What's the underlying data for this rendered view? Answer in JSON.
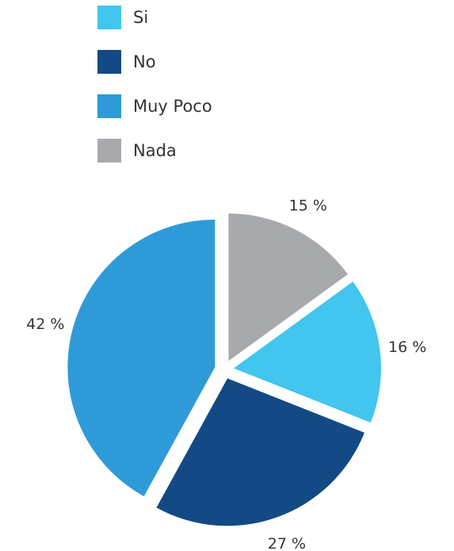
{
  "chart_data": {
    "type": "pie",
    "legend_position": "top",
    "slices": [
      {
        "label": "Nada",
        "value": 15,
        "value_label": "15 %",
        "color": "#a7a9ac"
      },
      {
        "label": "Si",
        "value": 16,
        "value_label": "16 %",
        "color": "#42c5ee"
      },
      {
        "label": "No",
        "value": 27,
        "value_label": "27 %",
        "color": "#134a85"
      },
      {
        "label": "Muy Poco",
        "value": 42,
        "value_label": "42 %",
        "color": "#2e9bd8"
      }
    ]
  },
  "legend": [
    {
      "label": "Si",
      "color": "#42c5ee"
    },
    {
      "label": "No",
      "color": "#134a85"
    },
    {
      "label": "Muy Poco",
      "color": "#2e9bd8"
    },
    {
      "label": "Nada",
      "color": "#a7a9ac"
    }
  ]
}
